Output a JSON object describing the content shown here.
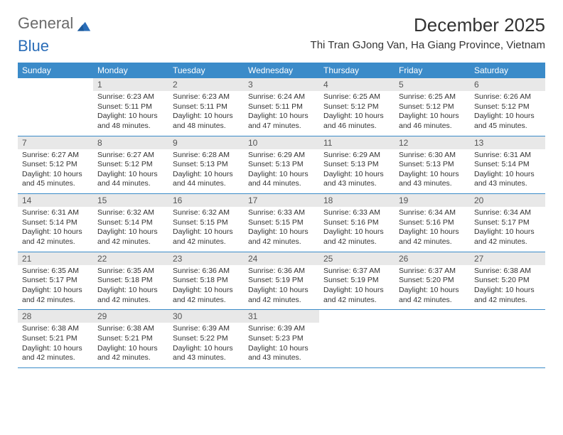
{
  "brand": {
    "part1": "General",
    "part2": "Blue"
  },
  "title": "December 2025",
  "location": "Thi Tran GJong Van, Ha Giang Province, Vietnam",
  "colors": {
    "header_bg": "#3b8bc9",
    "header_text": "#ffffff",
    "daynum_bg": "#e8e8e8",
    "row_border": "#3b8bc9",
    "brand_blue": "#2a6db8",
    "brand_gray": "#6a6a6a"
  },
  "weekdays": [
    "Sunday",
    "Monday",
    "Tuesday",
    "Wednesday",
    "Thursday",
    "Friday",
    "Saturday"
  ],
  "start_offset": 1,
  "days": [
    {
      "n": 1,
      "sunrise": "6:23 AM",
      "sunset": "5:11 PM",
      "daylight": "10 hours and 48 minutes."
    },
    {
      "n": 2,
      "sunrise": "6:23 AM",
      "sunset": "5:11 PM",
      "daylight": "10 hours and 48 minutes."
    },
    {
      "n": 3,
      "sunrise": "6:24 AM",
      "sunset": "5:11 PM",
      "daylight": "10 hours and 47 minutes."
    },
    {
      "n": 4,
      "sunrise": "6:25 AM",
      "sunset": "5:12 PM",
      "daylight": "10 hours and 46 minutes."
    },
    {
      "n": 5,
      "sunrise": "6:25 AM",
      "sunset": "5:12 PM",
      "daylight": "10 hours and 46 minutes."
    },
    {
      "n": 6,
      "sunrise": "6:26 AM",
      "sunset": "5:12 PM",
      "daylight": "10 hours and 45 minutes."
    },
    {
      "n": 7,
      "sunrise": "6:27 AM",
      "sunset": "5:12 PM",
      "daylight": "10 hours and 45 minutes."
    },
    {
      "n": 8,
      "sunrise": "6:27 AM",
      "sunset": "5:12 PM",
      "daylight": "10 hours and 44 minutes."
    },
    {
      "n": 9,
      "sunrise": "6:28 AM",
      "sunset": "5:13 PM",
      "daylight": "10 hours and 44 minutes."
    },
    {
      "n": 10,
      "sunrise": "6:29 AM",
      "sunset": "5:13 PM",
      "daylight": "10 hours and 44 minutes."
    },
    {
      "n": 11,
      "sunrise": "6:29 AM",
      "sunset": "5:13 PM",
      "daylight": "10 hours and 43 minutes."
    },
    {
      "n": 12,
      "sunrise": "6:30 AM",
      "sunset": "5:13 PM",
      "daylight": "10 hours and 43 minutes."
    },
    {
      "n": 13,
      "sunrise": "6:31 AM",
      "sunset": "5:14 PM",
      "daylight": "10 hours and 43 minutes."
    },
    {
      "n": 14,
      "sunrise": "6:31 AM",
      "sunset": "5:14 PM",
      "daylight": "10 hours and 42 minutes."
    },
    {
      "n": 15,
      "sunrise": "6:32 AM",
      "sunset": "5:14 PM",
      "daylight": "10 hours and 42 minutes."
    },
    {
      "n": 16,
      "sunrise": "6:32 AM",
      "sunset": "5:15 PM",
      "daylight": "10 hours and 42 minutes."
    },
    {
      "n": 17,
      "sunrise": "6:33 AM",
      "sunset": "5:15 PM",
      "daylight": "10 hours and 42 minutes."
    },
    {
      "n": 18,
      "sunrise": "6:33 AM",
      "sunset": "5:16 PM",
      "daylight": "10 hours and 42 minutes."
    },
    {
      "n": 19,
      "sunrise": "6:34 AM",
      "sunset": "5:16 PM",
      "daylight": "10 hours and 42 minutes."
    },
    {
      "n": 20,
      "sunrise": "6:34 AM",
      "sunset": "5:17 PM",
      "daylight": "10 hours and 42 minutes."
    },
    {
      "n": 21,
      "sunrise": "6:35 AM",
      "sunset": "5:17 PM",
      "daylight": "10 hours and 42 minutes."
    },
    {
      "n": 22,
      "sunrise": "6:35 AM",
      "sunset": "5:18 PM",
      "daylight": "10 hours and 42 minutes."
    },
    {
      "n": 23,
      "sunrise": "6:36 AM",
      "sunset": "5:18 PM",
      "daylight": "10 hours and 42 minutes."
    },
    {
      "n": 24,
      "sunrise": "6:36 AM",
      "sunset": "5:19 PM",
      "daylight": "10 hours and 42 minutes."
    },
    {
      "n": 25,
      "sunrise": "6:37 AM",
      "sunset": "5:19 PM",
      "daylight": "10 hours and 42 minutes."
    },
    {
      "n": 26,
      "sunrise": "6:37 AM",
      "sunset": "5:20 PM",
      "daylight": "10 hours and 42 minutes."
    },
    {
      "n": 27,
      "sunrise": "6:38 AM",
      "sunset": "5:20 PM",
      "daylight": "10 hours and 42 minutes."
    },
    {
      "n": 28,
      "sunrise": "6:38 AM",
      "sunset": "5:21 PM",
      "daylight": "10 hours and 42 minutes."
    },
    {
      "n": 29,
      "sunrise": "6:38 AM",
      "sunset": "5:21 PM",
      "daylight": "10 hours and 42 minutes."
    },
    {
      "n": 30,
      "sunrise": "6:39 AM",
      "sunset": "5:22 PM",
      "daylight": "10 hours and 43 minutes."
    },
    {
      "n": 31,
      "sunrise": "6:39 AM",
      "sunset": "5:23 PM",
      "daylight": "10 hours and 43 minutes."
    }
  ],
  "labels": {
    "sunrise": "Sunrise:",
    "sunset": "Sunset:",
    "daylight": "Daylight:"
  }
}
